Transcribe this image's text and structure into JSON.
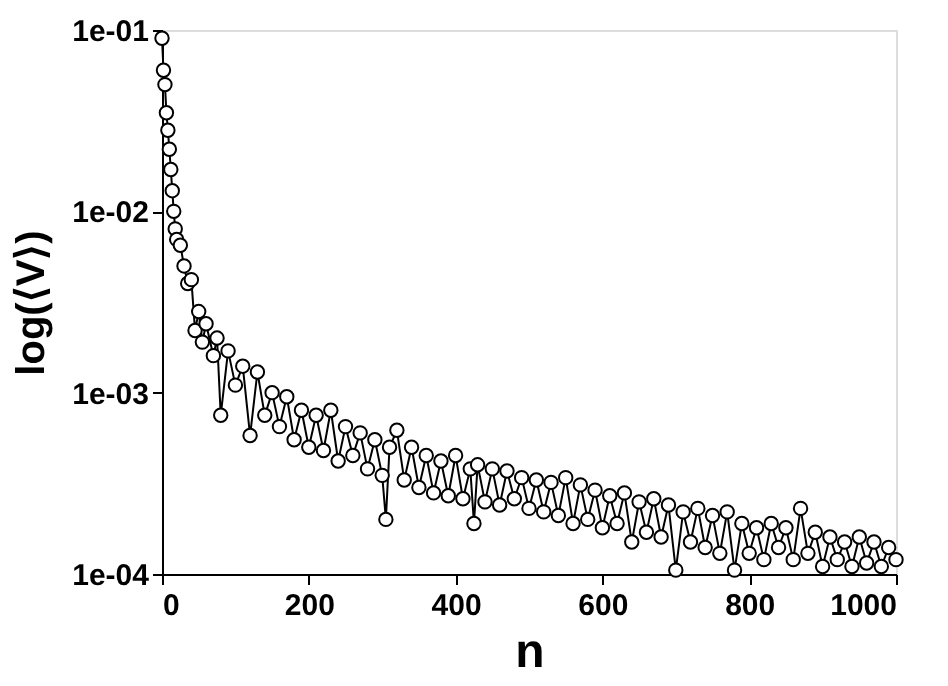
{
  "chart_data": {
    "type": "line",
    "xlabel": "n",
    "ylabel": "log(⟨V⟩)",
    "log": "y",
    "marker": "circle",
    "line_style": "solid",
    "grid": false,
    "xlim": [
      0,
      1000
    ],
    "xticks": [
      0,
      200,
      400,
      600,
      800,
      1000
    ],
    "ylim": [
      0.0001,
      0.1
    ],
    "yticks": [
      {
        "value": 0.0001,
        "label": "1e-04"
      },
      {
        "value": 0.001,
        "label": "1e-03"
      },
      {
        "value": 0.01,
        "label": "1e-02"
      },
      {
        "value": 0.1,
        "label": "1e-01"
      }
    ],
    "series": [
      {
        "color": "#000000",
        "x": [
          0,
          2,
          4,
          6,
          8,
          10,
          12,
          14,
          16,
          18,
          20,
          25,
          30,
          35,
          40,
          45,
          50,
          55,
          60,
          70,
          75,
          80,
          90,
          100,
          110,
          120,
          130,
          140,
          150,
          160,
          170,
          180,
          190,
          200,
          210,
          220,
          230,
          240,
          250,
          260,
          270,
          280,
          290,
          300,
          305,
          310,
          320,
          330,
          340,
          350,
          360,
          370,
          380,
          390,
          400,
          410,
          420,
          425,
          430,
          440,
          450,
          460,
          470,
          480,
          490,
          500,
          510,
          520,
          530,
          540,
          550,
          560,
          570,
          580,
          590,
          600,
          610,
          620,
          630,
          640,
          650,
          660,
          670,
          680,
          690,
          700,
          710,
          720,
          730,
          740,
          750,
          760,
          770,
          780,
          790,
          800,
          810,
          820,
          830,
          840,
          850,
          860,
          870,
          880,
          890,
          900,
          910,
          920,
          930,
          940,
          950,
          960,
          970,
          980,
          990,
          1000
        ],
        "values": [
          0.09,
          0.06,
          0.05,
          0.035,
          0.028,
          0.022,
          0.017,
          0.013,
          0.01,
          0.008,
          0.007,
          0.0065,
          0.005,
          0.004,
          0.0042,
          0.0022,
          0.0028,
          0.0019,
          0.0024,
          0.0016,
          0.002,
          0.00075,
          0.0017,
          0.0011,
          0.0014,
          0.00058,
          0.0013,
          0.00075,
          0.001,
          0.00065,
          0.00095,
          0.00055,
          0.0008,
          0.0005,
          0.00075,
          0.00048,
          0.0008,
          0.00042,
          0.00065,
          0.00045,
          0.0006,
          0.00038,
          0.00055,
          0.00035,
          0.0002,
          0.0005,
          0.00062,
          0.00033,
          0.0005,
          0.0003,
          0.00045,
          0.00028,
          0.00042,
          0.00027,
          0.00045,
          0.00026,
          0.00038,
          0.00019,
          0.0004,
          0.00025,
          0.00038,
          0.00024,
          0.00037,
          0.00026,
          0.00034,
          0.00023,
          0.00033,
          0.00022,
          0.00032,
          0.00021,
          0.00034,
          0.00019,
          0.00031,
          0.0002,
          0.00029,
          0.00018,
          0.00027,
          0.00019,
          0.00028,
          0.00015,
          0.00025,
          0.00017,
          0.00026,
          0.00016,
          0.00024,
          0.000105,
          0.00022,
          0.00015,
          0.00023,
          0.00014,
          0.00021,
          0.00013,
          0.00022,
          0.000105,
          0.00019,
          0.00013,
          0.00018,
          0.00012,
          0.00019,
          0.00014,
          0.00018,
          0.00012,
          0.00023,
          0.00013,
          0.00017,
          0.00011,
          0.00016,
          0.00012,
          0.00015,
          0.00011,
          0.00016,
          0.000115,
          0.00015,
          0.00011,
          0.00014,
          0.00012
        ]
      }
    ]
  }
}
